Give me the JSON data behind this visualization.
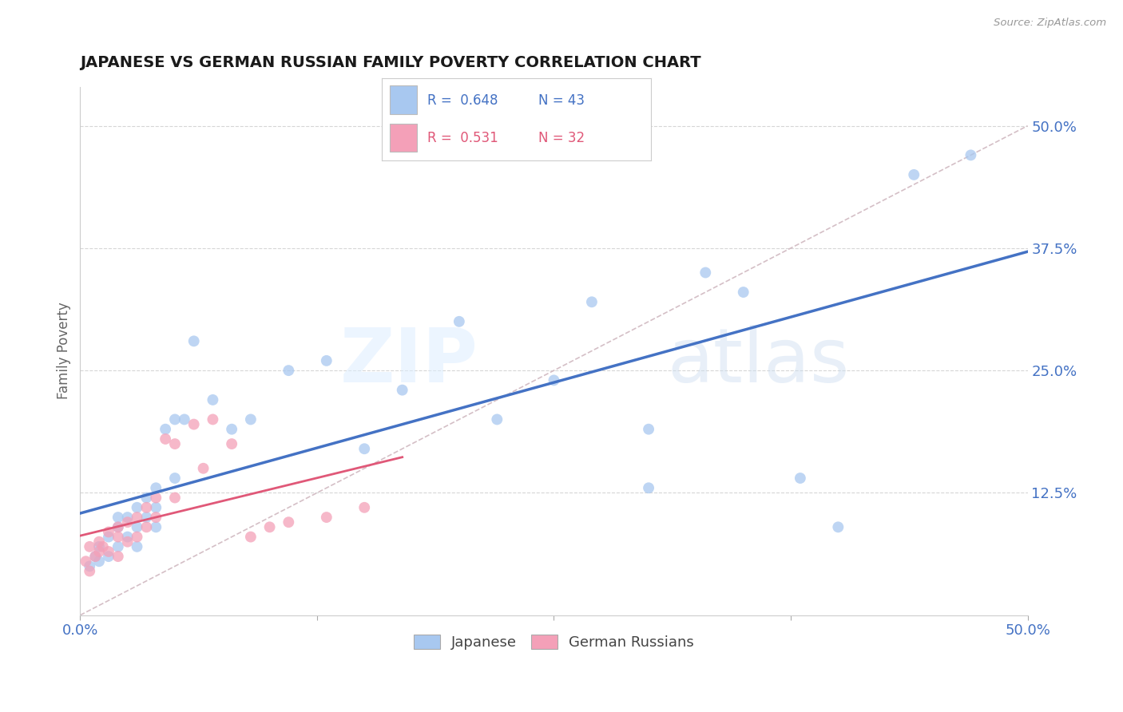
{
  "title": "JAPANESE VS GERMAN RUSSIAN FAMILY POVERTY CORRELATION CHART",
  "source": "Source: ZipAtlas.com",
  "ylabel": "Family Poverty",
  "xlim": [
    0.0,
    0.5
  ],
  "ylim": [
    0.0,
    0.54
  ],
  "xtick_positions": [
    0.0,
    0.125,
    0.25,
    0.375,
    0.5
  ],
  "xtick_labels": [
    "0.0%",
    "",
    "",
    "",
    "50.0%"
  ],
  "ytick_labels": [
    "12.5%",
    "25.0%",
    "37.5%",
    "50.0%"
  ],
  "ytick_positions": [
    0.125,
    0.25,
    0.375,
    0.5
  ],
  "r_japanese": 0.648,
  "n_japanese": 43,
  "r_german": 0.531,
  "n_german": 32,
  "japanese_color": "#a8c8f0",
  "german_color": "#f4a0b8",
  "regression_japanese_color": "#4472c4",
  "regression_german_color": "#e05878",
  "diagonal_color": "#d0b8c0",
  "japanese_x": [
    0.005,
    0.008,
    0.01,
    0.01,
    0.015,
    0.015,
    0.02,
    0.02,
    0.02,
    0.025,
    0.025,
    0.03,
    0.03,
    0.03,
    0.035,
    0.035,
    0.04,
    0.04,
    0.04,
    0.045,
    0.05,
    0.05,
    0.055,
    0.06,
    0.07,
    0.08,
    0.09,
    0.11,
    0.13,
    0.15,
    0.17,
    0.2,
    0.22,
    0.25,
    0.27,
    0.3,
    0.33,
    0.35,
    0.38,
    0.4,
    0.44,
    0.47,
    0.3
  ],
  "japanese_y": [
    0.05,
    0.06,
    0.055,
    0.07,
    0.06,
    0.08,
    0.07,
    0.09,
    0.1,
    0.08,
    0.1,
    0.07,
    0.09,
    0.11,
    0.1,
    0.12,
    0.09,
    0.11,
    0.13,
    0.19,
    0.14,
    0.2,
    0.2,
    0.28,
    0.22,
    0.19,
    0.2,
    0.25,
    0.26,
    0.17,
    0.23,
    0.3,
    0.2,
    0.24,
    0.32,
    0.19,
    0.35,
    0.33,
    0.14,
    0.09,
    0.45,
    0.47,
    0.13
  ],
  "german_x": [
    0.003,
    0.005,
    0.005,
    0.008,
    0.01,
    0.01,
    0.012,
    0.015,
    0.015,
    0.02,
    0.02,
    0.02,
    0.025,
    0.025,
    0.03,
    0.03,
    0.035,
    0.035,
    0.04,
    0.04,
    0.045,
    0.05,
    0.05,
    0.06,
    0.065,
    0.07,
    0.08,
    0.09,
    0.1,
    0.11,
    0.13,
    0.15
  ],
  "german_y": [
    0.055,
    0.045,
    0.07,
    0.06,
    0.065,
    0.075,
    0.07,
    0.065,
    0.085,
    0.06,
    0.08,
    0.09,
    0.075,
    0.095,
    0.08,
    0.1,
    0.09,
    0.11,
    0.1,
    0.12,
    0.18,
    0.12,
    0.175,
    0.195,
    0.15,
    0.2,
    0.175,
    0.08,
    0.09,
    0.095,
    0.1,
    0.11
  ],
  "background_color": "#ffffff",
  "grid_color": "#cccccc",
  "title_color": "#1a1a1a",
  "tick_label_color": "#4472c4"
}
